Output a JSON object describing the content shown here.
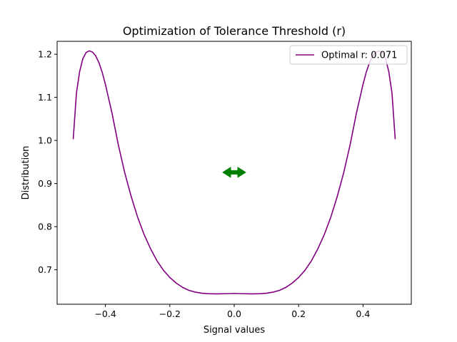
{
  "chart_data": {
    "type": "line",
    "title": "Optimization of Tolerance Threshold (r)",
    "xlabel": "Signal values",
    "ylabel": "Distribution",
    "xlim": [
      -0.55,
      0.55
    ],
    "ylim": [
      0.62,
      1.23
    ],
    "xticks": [
      -0.4,
      -0.2,
      0.0,
      0.2,
      0.4
    ],
    "xtick_labels": [
      "−0.4",
      "−0.2",
      "0.0",
      "0.2",
      "0.4"
    ],
    "yticks": [
      0.7,
      0.8,
      0.9,
      1.0,
      1.1,
      1.2
    ],
    "ytick_labels": [
      "0.7",
      "0.8",
      "0.9",
      "1.0",
      "1.1",
      "1.2"
    ],
    "grid": false,
    "legend_position": "upper-right",
    "series": [
      {
        "name": "Optimal r: 0.071",
        "color": "#800080",
        "x": [
          -0.5,
          -0.49,
          -0.48,
          -0.47,
          -0.46,
          -0.45,
          -0.44,
          -0.43,
          -0.42,
          -0.41,
          -0.4,
          -0.38,
          -0.36,
          -0.34,
          -0.32,
          -0.3,
          -0.28,
          -0.26,
          -0.24,
          -0.22,
          -0.2,
          -0.18,
          -0.16,
          -0.14,
          -0.12,
          -0.1,
          -0.08,
          -0.06,
          -0.04,
          -0.02,
          0.0,
          0.02,
          0.04,
          0.06,
          0.08,
          0.1,
          0.12,
          0.14,
          0.16,
          0.18,
          0.2,
          0.22,
          0.24,
          0.26,
          0.28,
          0.3,
          0.32,
          0.34,
          0.36,
          0.38,
          0.4,
          0.41,
          0.42,
          0.43,
          0.44,
          0.45,
          0.46,
          0.47,
          0.48,
          0.49,
          0.5
        ],
        "y": [
          1.003,
          1.11,
          1.16,
          1.19,
          1.204,
          1.208,
          1.205,
          1.196,
          1.18,
          1.158,
          1.13,
          1.065,
          0.99,
          0.925,
          0.87,
          0.822,
          0.782,
          0.749,
          0.721,
          0.699,
          0.682,
          0.669,
          0.659,
          0.652,
          0.648,
          0.6455,
          0.6445,
          0.644,
          0.6442,
          0.6446,
          0.645,
          0.6446,
          0.6442,
          0.644,
          0.6445,
          0.6455,
          0.648,
          0.652,
          0.659,
          0.669,
          0.682,
          0.699,
          0.721,
          0.749,
          0.782,
          0.822,
          0.87,
          0.925,
          0.99,
          1.065,
          1.13,
          1.158,
          1.18,
          1.196,
          1.205,
          1.208,
          1.204,
          1.19,
          1.16,
          1.11,
          1.003
        ]
      }
    ],
    "annotations": [
      {
        "type": "double-arrow",
        "color": "#008000",
        "x_center": 0.0,
        "half_width": 0.0355,
        "y": 0.926
      }
    ]
  }
}
